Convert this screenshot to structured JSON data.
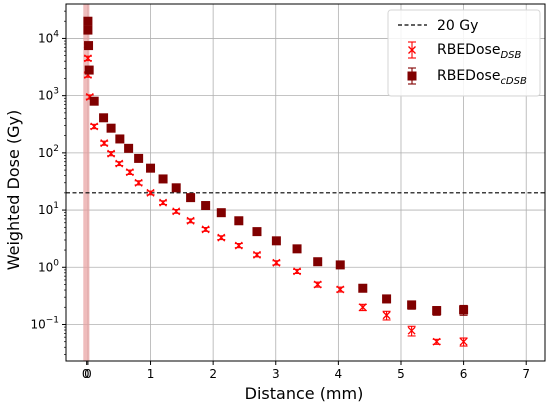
{
  "chart_data": {
    "type": "scatter",
    "title": "",
    "xlabel": "Distance (mm)",
    "ylabel": "Weighted Dose (Gy)",
    "yscale": "log",
    "xlim": [
      -0.35,
      7.3
    ],
    "ylim": [
      0.023,
      40000
    ],
    "grid": true,
    "legend_position": "top-right",
    "x_ticks": [
      0,
      1,
      2,
      3,
      4,
      5,
      6,
      7
    ],
    "x_tick_labels": [
      "0",
      "1",
      "2",
      "3",
      "4",
      "5",
      "6",
      "7"
    ],
    "extra_x_tick_labels": [
      {
        "x": -0.02,
        "label": "0"
      }
    ],
    "y_ticks": [
      0.1,
      1,
      10,
      100,
      1000,
      10000
    ],
    "y_tick_labels": [
      {
        "base": "10",
        "exp": "−1"
      },
      {
        "base": "10",
        "exp": "0"
      },
      {
        "base": "10",
        "exp": "1"
      },
      {
        "base": "10",
        "exp": "2"
      },
      {
        "base": "10",
        "exp": "3"
      },
      {
        "base": "10",
        "exp": "4"
      }
    ],
    "shaded_band": {
      "x_from": -0.05,
      "x_to": 0.0,
      "color": "#e8a0a0"
    },
    "reference_line": {
      "name": "20 Gy",
      "y": 20,
      "style": "dashed",
      "color": "#000000"
    },
    "series": [
      {
        "name": "RBEDose_DSB",
        "name_main": "RBEDose",
        "name_sub": "DSB",
        "marker": "x",
        "color": "#ff0000",
        "points": [
          {
            "x": 0.0,
            "y": 7500,
            "err": 500
          },
          {
            "x": 0.0,
            "y": 4500,
            "err": 400
          },
          {
            "x": 0.0,
            "y": 2300,
            "err": 200
          },
          {
            "x": 0.03,
            "y": 950,
            "err": 80
          },
          {
            "x": 0.1,
            "y": 290,
            "err": 25
          },
          {
            "x": 0.26,
            "y": 148,
            "err": 12
          },
          {
            "x": 0.37,
            "y": 97,
            "err": 8
          },
          {
            "x": 0.5,
            "y": 65,
            "err": 5
          },
          {
            "x": 0.67,
            "y": 46,
            "err": 4
          },
          {
            "x": 0.81,
            "y": 30,
            "err": 2.5
          },
          {
            "x": 1.0,
            "y": 20,
            "err": 1.5
          },
          {
            "x": 1.2,
            "y": 13.5,
            "err": 1
          },
          {
            "x": 1.41,
            "y": 9.5,
            "err": 0.7
          },
          {
            "x": 1.64,
            "y": 6.5,
            "err": 0.5
          },
          {
            "x": 1.88,
            "y": 4.6,
            "err": 0.35
          },
          {
            "x": 2.13,
            "y": 3.3,
            "err": 0.25
          },
          {
            "x": 2.41,
            "y": 2.4,
            "err": 0.2
          },
          {
            "x": 2.7,
            "y": 1.65,
            "err": 0.13
          },
          {
            "x": 3.01,
            "y": 1.2,
            "err": 0.1
          },
          {
            "x": 3.34,
            "y": 0.85,
            "err": 0.07
          },
          {
            "x": 3.67,
            "y": 0.5,
            "err": 0.05
          },
          {
            "x": 4.03,
            "y": 0.41,
            "err": 0.04
          },
          {
            "x": 4.39,
            "y": 0.2,
            "err": 0.025
          },
          {
            "x": 4.77,
            "y": 0.145,
            "err": 0.025
          },
          {
            "x": 5.17,
            "y": 0.078,
            "err": 0.015
          },
          {
            "x": 5.57,
            "y": 0.05,
            "err": 0.005
          },
          {
            "x": 6.0,
            "y": 0.05,
            "err": 0.008
          }
        ]
      },
      {
        "name": "RBEDose_cDSB",
        "name_main": "RBEDose",
        "name_sub": "cDSB",
        "marker": "square",
        "color": "#800000",
        "points": [
          {
            "x": 0.0,
            "y": 20000,
            "err": 2000
          },
          {
            "x": 0.0,
            "y": 14000,
            "err": 1500
          },
          {
            "x": 0.01,
            "y": 7500,
            "err": 700
          },
          {
            "x": 0.02,
            "y": 2800,
            "err": 300
          },
          {
            "x": 0.1,
            "y": 800,
            "err": 60
          },
          {
            "x": 0.25,
            "y": 410,
            "err": 30
          },
          {
            "x": 0.37,
            "y": 270,
            "err": 20
          },
          {
            "x": 0.51,
            "y": 175,
            "err": 14
          },
          {
            "x": 0.65,
            "y": 120,
            "err": 9
          },
          {
            "x": 0.81,
            "y": 80,
            "err": 6
          },
          {
            "x": 1.0,
            "y": 54,
            "err": 4
          },
          {
            "x": 1.2,
            "y": 35,
            "err": 3
          },
          {
            "x": 1.41,
            "y": 24.5,
            "err": 2
          },
          {
            "x": 1.64,
            "y": 16.5,
            "err": 1.3
          },
          {
            "x": 1.88,
            "y": 12,
            "err": 1
          },
          {
            "x": 2.13,
            "y": 9,
            "err": 0.7
          },
          {
            "x": 2.41,
            "y": 6.5,
            "err": 0.5
          },
          {
            "x": 2.7,
            "y": 4.2,
            "err": 0.35
          },
          {
            "x": 3.01,
            "y": 2.9,
            "err": 0.25
          },
          {
            "x": 3.34,
            "y": 2.1,
            "err": 0.2
          },
          {
            "x": 3.67,
            "y": 1.25,
            "err": 0.12
          },
          {
            "x": 4.03,
            "y": 1.1,
            "err": 0.12
          },
          {
            "x": 4.39,
            "y": 0.43,
            "err": 0.04
          },
          {
            "x": 4.77,
            "y": 0.28,
            "err": 0.04
          },
          {
            "x": 5.17,
            "y": 0.22,
            "err": 0.035
          },
          {
            "x": 5.57,
            "y": 0.175,
            "err": 0.03
          },
          {
            "x": 6.0,
            "y": 0.18,
            "err": 0.035
          }
        ]
      }
    ]
  }
}
